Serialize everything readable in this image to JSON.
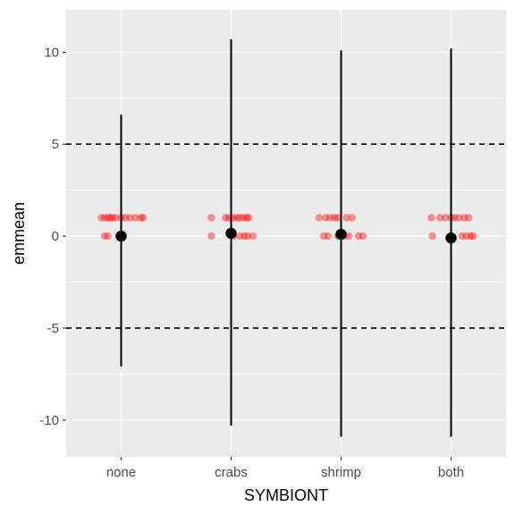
{
  "chart_data": {
    "type": "scatter",
    "title": "",
    "xlabel": "SYMBIONT",
    "ylabel": "emmean",
    "categories": [
      "none",
      "crabs",
      "shrimp",
      "both"
    ],
    "ylim": [
      -12.0,
      12.3
    ],
    "yticks": [
      -10,
      -5,
      0,
      5,
      10
    ],
    "ytick_labels": [
      "-10",
      "-5",
      "0",
      "5",
      "10"
    ],
    "reference_lines": [
      -5,
      5
    ],
    "grid": true,
    "legend": "none",
    "estimates": [
      {
        "category": "none",
        "emmean": 0.0,
        "lower": -7.1,
        "upper": 6.6
      },
      {
        "category": "crabs",
        "emmean": 0.15,
        "lower": -10.3,
        "upper": 10.7
      },
      {
        "category": "shrimp",
        "emmean": 0.1,
        "lower": -10.9,
        "upper": 10.1
      },
      {
        "category": "both",
        "emmean": -0.1,
        "lower": -10.9,
        "upper": 10.2
      }
    ],
    "raw_points": [
      {
        "category": "none",
        "offsets": [
          -0.18,
          -0.15,
          -0.12,
          -0.1,
          -0.08,
          -0.05,
          0.0,
          0.04,
          0.08,
          0.13,
          0.18,
          0.2,
          -0.15,
          -0.12,
          0.0
        ],
        "values": [
          1,
          1,
          1,
          1,
          1,
          1,
          1,
          1,
          1,
          1,
          1,
          1,
          0,
          0,
          0
        ]
      },
      {
        "category": "crabs",
        "offsets": [
          -0.18,
          -0.05,
          -0.02,
          0.02,
          0.05,
          0.08,
          0.11,
          0.14,
          0.16,
          -0.18,
          0.02,
          0.08,
          0.12,
          0.15,
          0.2
        ],
        "values": [
          1,
          1,
          1,
          1,
          1,
          1,
          1,
          1,
          1,
          0,
          0,
          0,
          0,
          0,
          0
        ]
      },
      {
        "category": "shrimp",
        "offsets": [
          -0.2,
          -0.14,
          -0.1,
          -0.06,
          -0.03,
          0.05,
          0.1,
          -0.16,
          -0.12,
          -0.03,
          0.0,
          0.03,
          0.07,
          0.16,
          0.2
        ],
        "values": [
          1,
          1,
          1,
          1,
          1,
          1,
          1,
          0,
          0,
          0,
          0,
          0,
          0,
          0,
          0
        ]
      },
      {
        "category": "both",
        "offsets": [
          -0.18,
          -0.1,
          -0.05,
          0.0,
          0.03,
          0.07,
          0.12,
          0.16,
          -0.17,
          0.1,
          0.14,
          0.18,
          0.2
        ],
        "values": [
          1,
          1,
          1,
          1,
          1,
          1,
          1,
          1,
          0,
          0,
          0,
          0,
          0
        ]
      }
    ],
    "colors": {
      "panel": "#ebebeb",
      "grid": "#ffffff",
      "raw_point": "#ff0000",
      "estimate": "#000000",
      "reference_line": "#000000"
    }
  }
}
